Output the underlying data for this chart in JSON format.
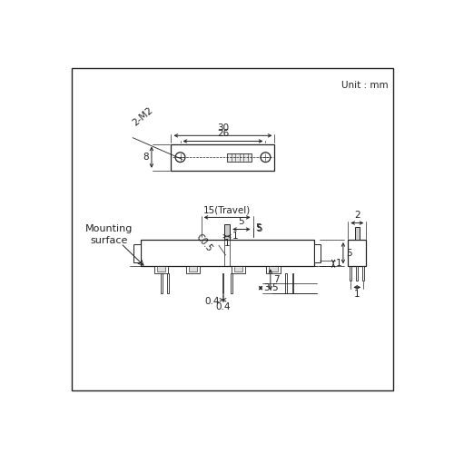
{
  "bg_color": "#ffffff",
  "border_color": "#444444",
  "lc": "#222222",
  "unit_text": "Unit : mm",
  "label_2m2": "2-M2",
  "label_30": "30",
  "label_26": "26",
  "label_8": "8",
  "label_15": "15(Travel)",
  "label_5a": "5",
  "label_1a": "1",
  "label_c05": "C0.5",
  "label_1b": "1",
  "label_5b": "5",
  "label_04": "0.4",
  "label_35": "3.5",
  "label_7": "7",
  "label_2": "2",
  "label_1c": "1",
  "label_mounting": "Mounting\nsurface",
  "dim_fontsize": 7.5,
  "small_fontsize": 7
}
